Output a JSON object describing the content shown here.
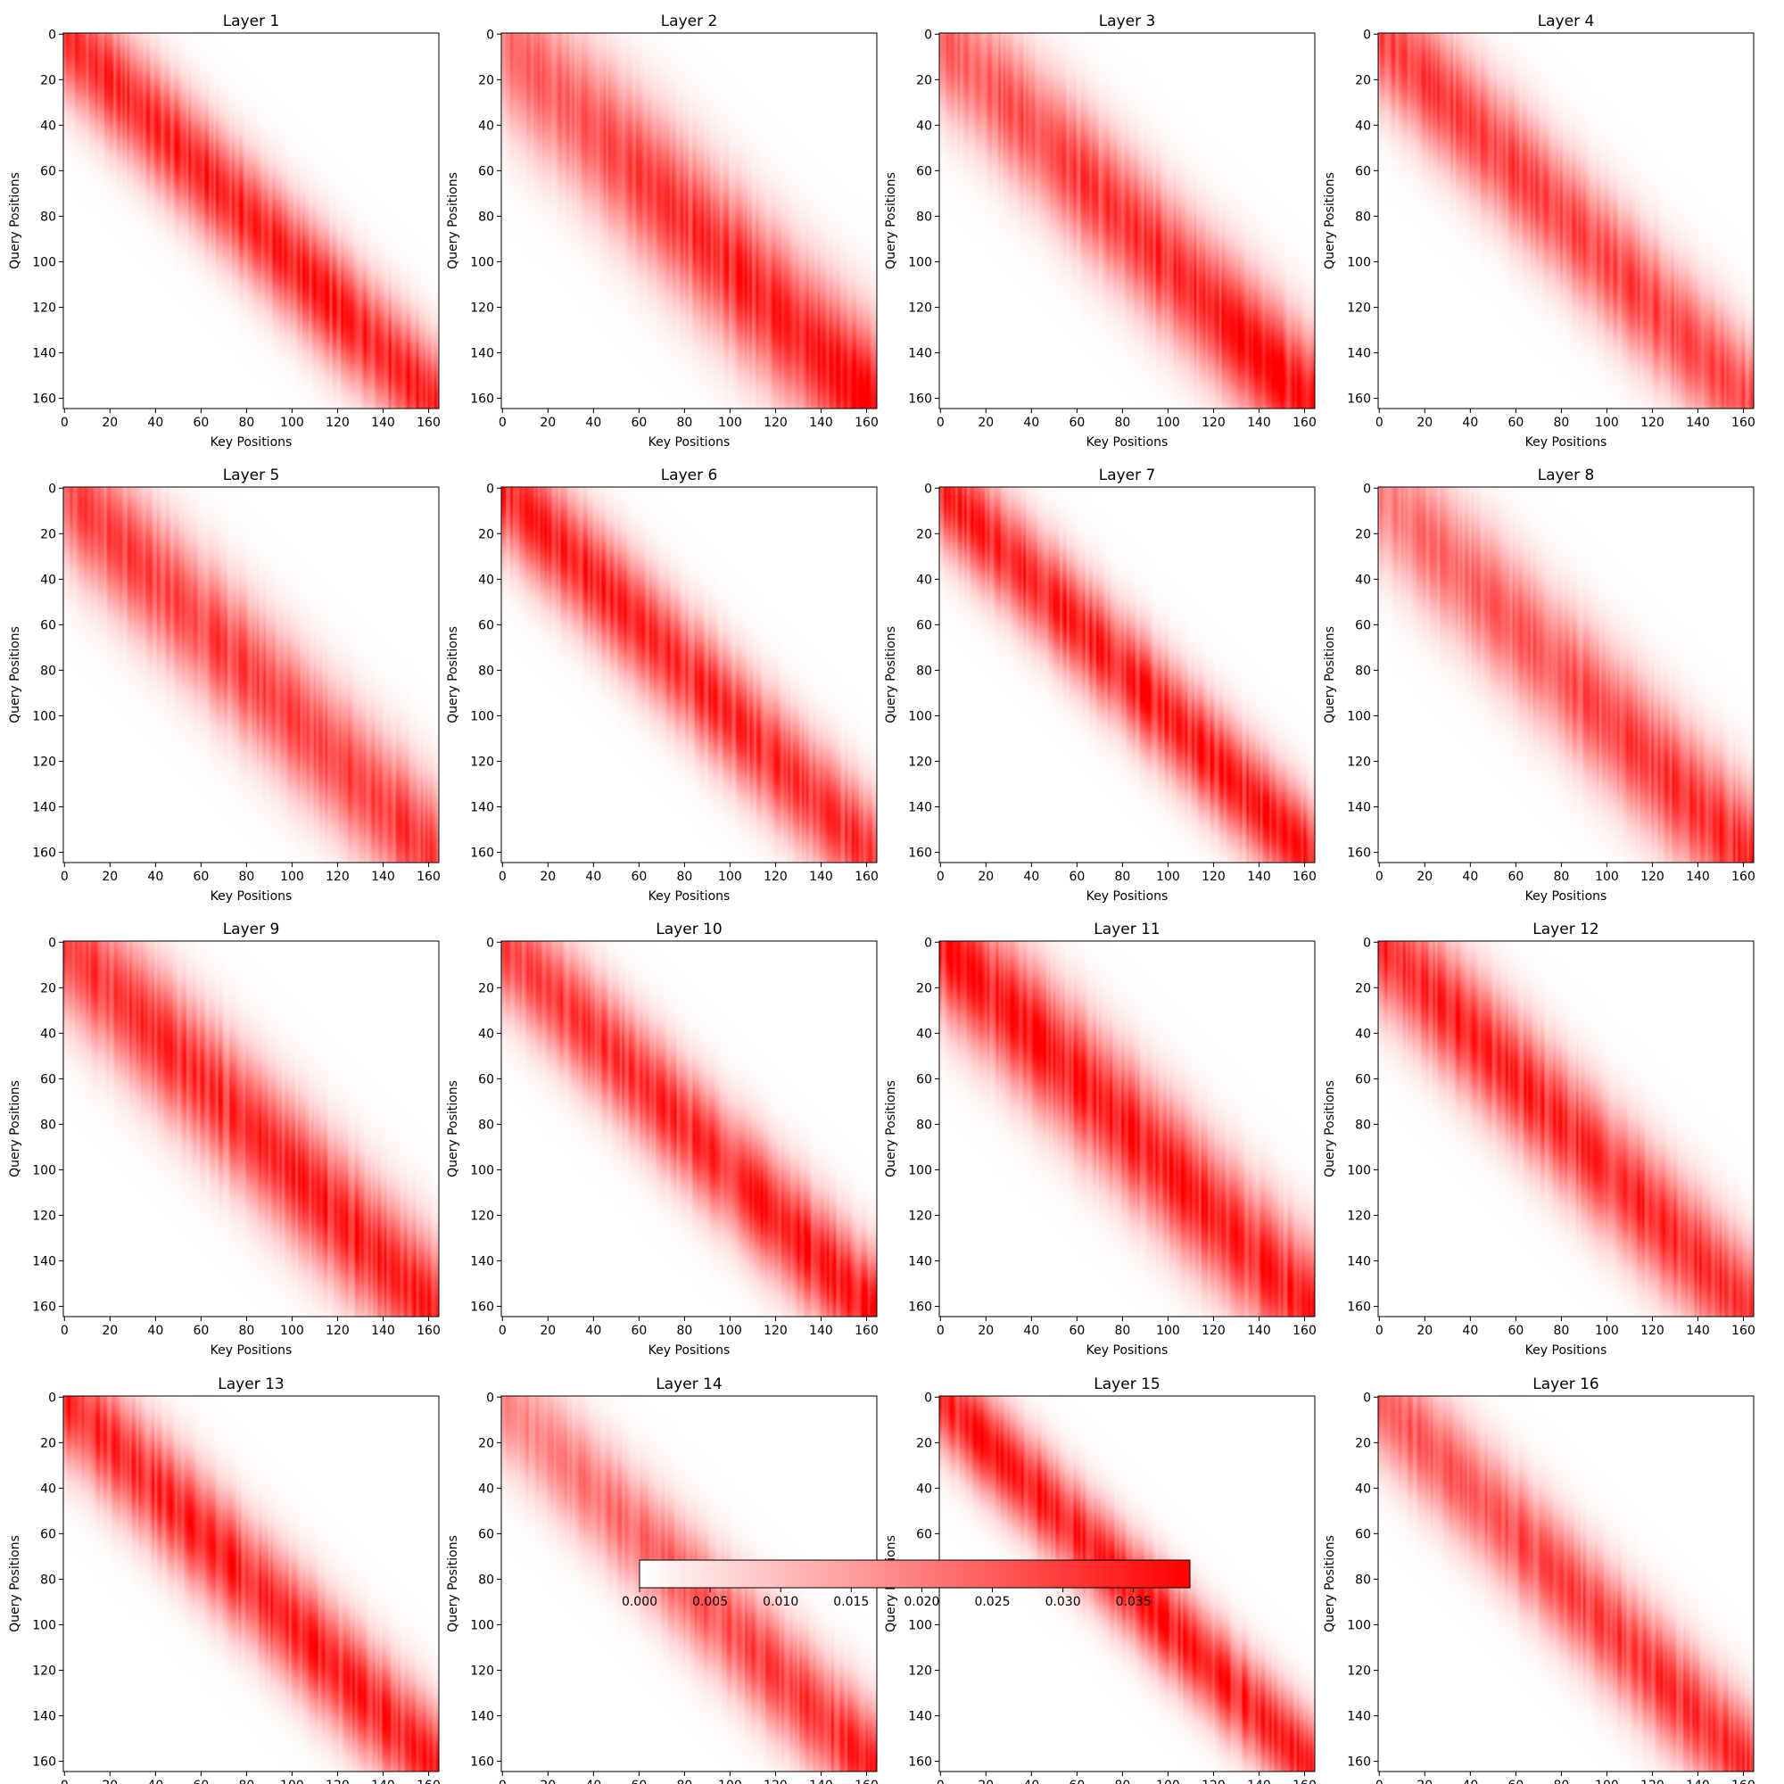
{
  "chart_data": {
    "type": "heatmap",
    "panels": [
      {
        "title": "Layer 1",
        "band_width": 26,
        "start_intensity": 0.8,
        "end_intensity": 0.9
      },
      {
        "title": "Layer 2",
        "band_width": 34,
        "start_intensity": 0.55,
        "end_intensity": 1.0
      },
      {
        "title": "Layer 3",
        "band_width": 30,
        "start_intensity": 0.6,
        "end_intensity": 0.95
      },
      {
        "title": "Layer 4",
        "band_width": 28,
        "start_intensity": 0.75,
        "end_intensity": 0.7
      },
      {
        "title": "Layer 5",
        "band_width": 30,
        "start_intensity": 0.7,
        "end_intensity": 0.75
      },
      {
        "title": "Layer 6",
        "band_width": 26,
        "start_intensity": 0.85,
        "end_intensity": 0.8
      },
      {
        "title": "Layer 7",
        "band_width": 24,
        "start_intensity": 0.85,
        "end_intensity": 0.9
      },
      {
        "title": "Layer 8",
        "band_width": 30,
        "start_intensity": 0.5,
        "end_intensity": 0.85
      },
      {
        "title": "Layer 9",
        "band_width": 30,
        "start_intensity": 0.75,
        "end_intensity": 0.9
      },
      {
        "title": "Layer 10",
        "band_width": 26,
        "start_intensity": 0.7,
        "end_intensity": 0.95
      },
      {
        "title": "Layer 11",
        "band_width": 30,
        "start_intensity": 0.9,
        "end_intensity": 0.85
      },
      {
        "title": "Layer 12",
        "band_width": 28,
        "start_intensity": 0.85,
        "end_intensity": 0.8
      },
      {
        "title": "Layer 13",
        "band_width": 26,
        "start_intensity": 0.85,
        "end_intensity": 0.85
      },
      {
        "title": "Layer 14",
        "band_width": 26,
        "start_intensity": 0.45,
        "end_intensity": 0.85
      },
      {
        "title": "Layer 15",
        "band_width": 22,
        "start_intensity": 0.9,
        "end_intensity": 0.85
      },
      {
        "title": "Layer 16",
        "band_width": 26,
        "start_intensity": 0.6,
        "end_intensity": 0.85
      }
    ],
    "matrix_size": 165,
    "xlabel": "Key Positions",
    "ylabel": "Query Positions",
    "xticks": [
      0,
      20,
      40,
      60,
      80,
      100,
      120,
      140,
      160
    ],
    "yticks": [
      0,
      20,
      40,
      60,
      80,
      100,
      120,
      140,
      160
    ],
    "xlim": [
      0,
      165
    ],
    "ylim": [
      165,
      0
    ],
    "colormap": {
      "low": "#ffffff",
      "high": "#ff0000"
    },
    "colorbar": {
      "range": [
        0,
        0.039
      ],
      "ticks": [
        "0.000",
        "0.005",
        "0.010",
        "0.015",
        "0.020",
        "0.025",
        "0.030",
        "0.035"
      ],
      "orientation": "horizontal"
    },
    "grid": false
  }
}
